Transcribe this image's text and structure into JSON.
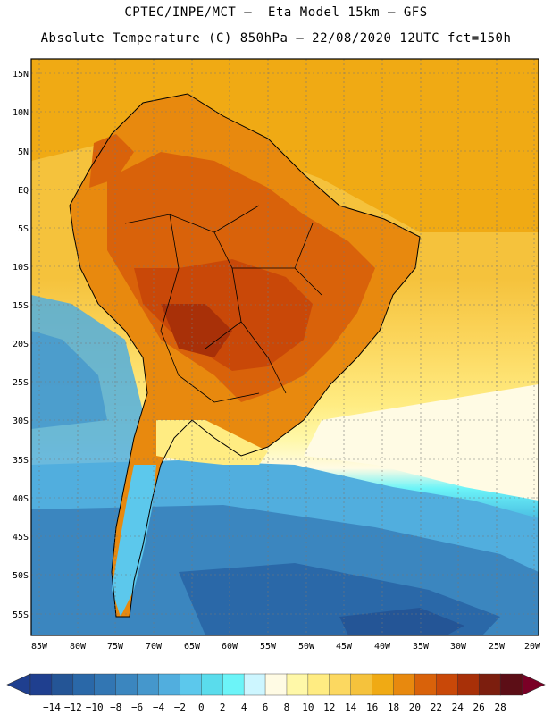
{
  "title": {
    "line1": "CPTEC/INPE/MCT –  Eta Model 15km – GFS",
    "line2": "Absolute Temperature (C) 850hPa – 22/08/2020 12UTC fct=150h"
  },
  "axes": {
    "lat_labels": [
      "15N",
      "10N",
      "5N",
      "EQ",
      "5S",
      "10S",
      "15S",
      "20S",
      "25S",
      "30S",
      "35S",
      "40S",
      "45S",
      "50S",
      "55S"
    ],
    "lon_labels": [
      "85W",
      "80W",
      "75W",
      "70W",
      "65W",
      "60W",
      "55W",
      "50W",
      "45W",
      "40W",
      "35W",
      "30W",
      "25W",
      "20W"
    ]
  },
  "colorbar": {
    "ticks": [
      "-14",
      "-12",
      "-10",
      "-8",
      "-6",
      "-4",
      "-2",
      "0",
      "2",
      "4",
      "6",
      "8",
      "10",
      "12",
      "14",
      "16",
      "18",
      "20",
      "22",
      "24",
      "26",
      "28"
    ],
    "colors": [
      "#1f3f8f",
      "#245596",
      "#2a68a8",
      "#3276b3",
      "#3b86bf",
      "#4597cc",
      "#51aede",
      "#5cc8ec",
      "#5adcec",
      "#6cf4f8",
      "#cdf6ff",
      "#fffbe4",
      "#fff8a8",
      "#ffec82",
      "#fcd860",
      "#f5c23c",
      "#f0aa14",
      "#e8890e",
      "#d9620a",
      "#c94808",
      "#a83008",
      "#7c1e0e",
      "#5c0e16"
    ],
    "min_color": "#1f3f8f",
    "max_color": "#7a0026"
  }
}
